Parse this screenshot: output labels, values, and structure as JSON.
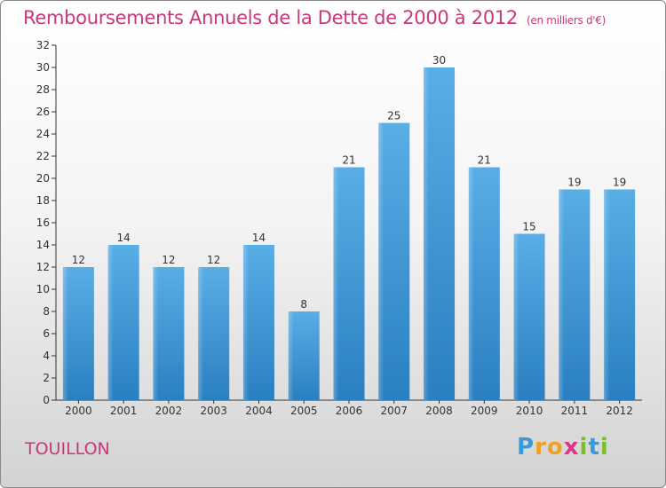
{
  "title": "Remboursements Annuels de la Dette de 2000 à 2012",
  "unit": "(en milliers d'€)",
  "commune": "TOUILLON",
  "logo_text": [
    "P",
    "r",
    "o",
    "x",
    "i",
    "t",
    "i"
  ],
  "colors": {
    "title": "#c8387a",
    "bar_top": "#5aaee6",
    "bar_bottom": "#2a7fc0"
  },
  "chart_data": {
    "type": "bar",
    "categories": [
      "2000",
      "2001",
      "2002",
      "2003",
      "2004",
      "2005",
      "2006",
      "2007",
      "2008",
      "2009",
      "2010",
      "2011",
      "2012"
    ],
    "values": [
      12,
      14,
      12,
      12,
      14,
      8,
      21,
      25,
      30,
      21,
      15,
      19,
      19
    ],
    "ylim": [
      0,
      32
    ],
    "yticks": [
      0,
      2,
      4,
      6,
      8,
      10,
      12,
      14,
      16,
      18,
      20,
      22,
      24,
      26,
      28,
      30,
      32
    ],
    "grid": false,
    "data_labels": true
  }
}
